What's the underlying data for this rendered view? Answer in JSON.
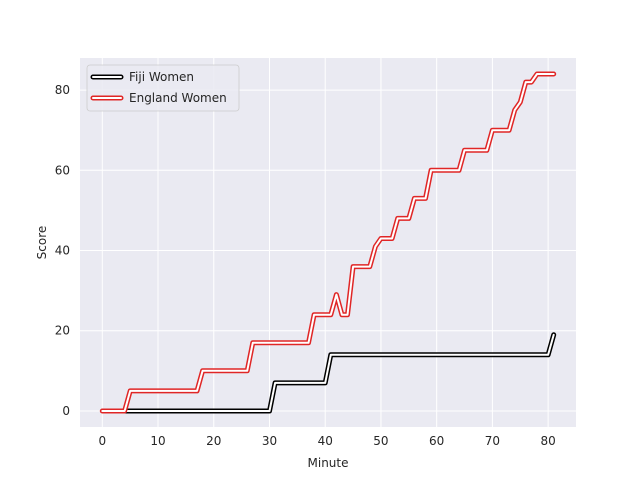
{
  "chart_data": {
    "type": "line",
    "xlabel": "Minute",
    "ylabel": "Score",
    "xlim": [
      -4,
      85
    ],
    "ylim": [
      -4,
      88
    ],
    "x_ticks": [
      0,
      10,
      20,
      30,
      40,
      50,
      60,
      70,
      80
    ],
    "y_ticks": [
      0,
      20,
      40,
      60,
      80
    ],
    "grid": true,
    "legend_position": "upper-left",
    "background": "#eaeaf2",
    "series": [
      {
        "name": "Fiji Women",
        "color": "#000000",
        "style": "outlined",
        "points": [
          [
            4,
            0
          ],
          [
            30,
            0
          ],
          [
            31,
            7
          ],
          [
            40,
            7
          ],
          [
            41,
            14
          ],
          [
            80,
            14
          ],
          [
            81,
            19
          ]
        ]
      },
      {
        "name": "England Women",
        "color": "#e02626",
        "style": "outlined",
        "points": [
          [
            0,
            0
          ],
          [
            4,
            0
          ],
          [
            5,
            5
          ],
          [
            17,
            5
          ],
          [
            18,
            10
          ],
          [
            26,
            10
          ],
          [
            27,
            17
          ],
          [
            37,
            17
          ],
          [
            38,
            24
          ],
          [
            40,
            24
          ],
          [
            41,
            24
          ],
          [
            42,
            29
          ],
          [
            43,
            24
          ],
          [
            44,
            24
          ],
          [
            45,
            36
          ],
          [
            48,
            36
          ],
          [
            49,
            41
          ],
          [
            50,
            43
          ],
          [
            52,
            43
          ],
          [
            53,
            48
          ],
          [
            55,
            48
          ],
          [
            56,
            53
          ],
          [
            58,
            53
          ],
          [
            59,
            60
          ],
          [
            64,
            60
          ],
          [
            65,
            65
          ],
          [
            69,
            65
          ],
          [
            70,
            70
          ],
          [
            73,
            70
          ],
          [
            74,
            75
          ],
          [
            75,
            77
          ],
          [
            76,
            82
          ],
          [
            77,
            82
          ],
          [
            78,
            84
          ],
          [
            81,
            84
          ]
        ]
      }
    ]
  }
}
